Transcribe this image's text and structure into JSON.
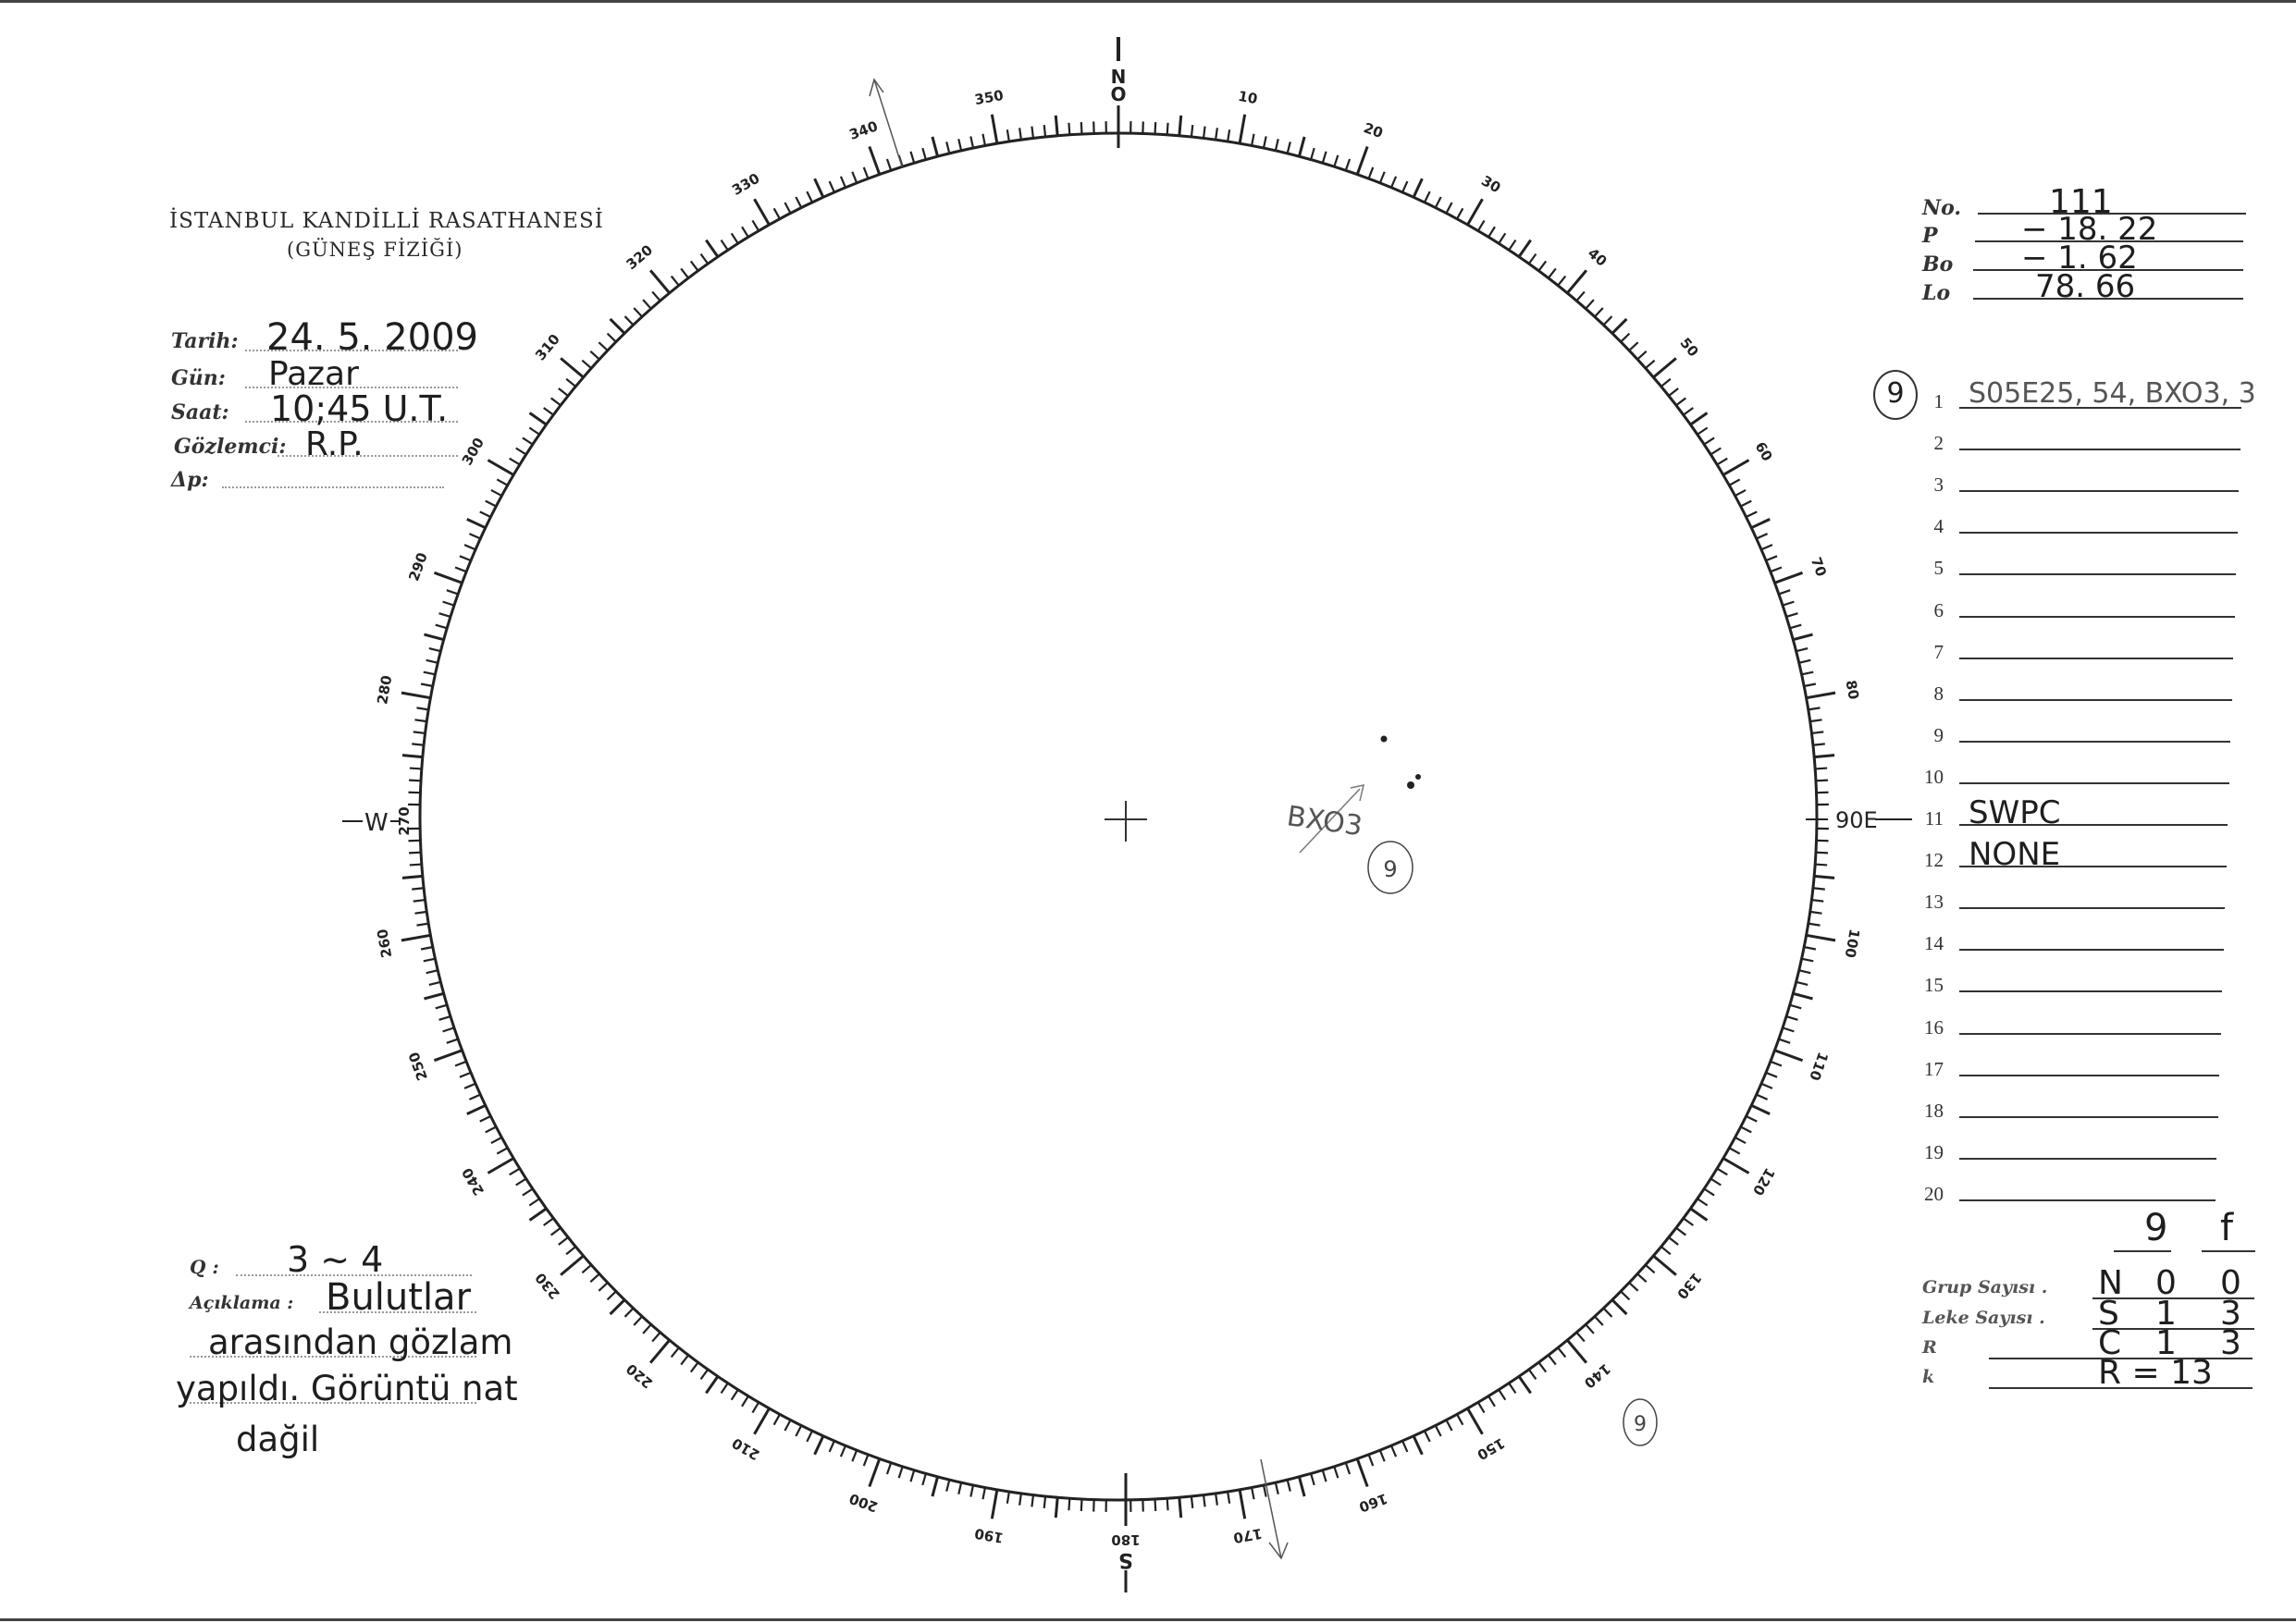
{
  "header": {
    "institution": "İSTANBUL KANDİLLİ RASATHANESİ",
    "department": "(GÜNEŞ FİZİĞİ)"
  },
  "observation": {
    "date_label": "Tarih:",
    "date_value": "24. 5. 2009",
    "day_label": "Gün:",
    "day_value": "Pazar",
    "time_label": "Saat:",
    "time_value": "10;45 U.T.",
    "observer_label": "Gözlemci:",
    "observer_value": "R.P.",
    "delta_p_label": "Δp:",
    "delta_p_value": ""
  },
  "parameters": [
    {
      "label": "No.",
      "value": "111"
    },
    {
      "label": "P",
      "value": "− 18. 22"
    },
    {
      "label": "Bo",
      "value": "− 1. 62"
    },
    {
      "label": "Lo",
      "value": "78. 66"
    }
  ],
  "group_lines": [
    {
      "n": "1",
      "value": "S05E25, 54, BXO3, 3",
      "mark": "9"
    },
    {
      "n": "2",
      "value": ""
    },
    {
      "n": "3",
      "value": ""
    },
    {
      "n": "4",
      "value": ""
    },
    {
      "n": "5",
      "value": ""
    },
    {
      "n": "6",
      "value": ""
    },
    {
      "n": "7",
      "value": ""
    },
    {
      "n": "8",
      "value": ""
    },
    {
      "n": "9",
      "value": ""
    },
    {
      "n": "10",
      "value": ""
    },
    {
      "n": "11",
      "value": "SWPC"
    },
    {
      "n": "12",
      "value": "NONE"
    },
    {
      "n": "13",
      "value": ""
    },
    {
      "n": "14",
      "value": ""
    },
    {
      "n": "15",
      "value": ""
    },
    {
      "n": "16",
      "value": ""
    },
    {
      "n": "17",
      "value": ""
    },
    {
      "n": "18",
      "value": ""
    },
    {
      "n": "19",
      "value": ""
    },
    {
      "n": "20",
      "value": ""
    }
  ],
  "summary": {
    "col_headers": [
      "9",
      "f"
    ],
    "rows": [
      {
        "label": "Grup Sayısı .",
        "hemi": "N",
        "g": "0",
        "f": "0"
      },
      {
        "label": "Leke Sayısı .",
        "hemi": "S",
        "g": "1",
        "f": "3"
      },
      {
        "label": "R",
        "hemi": "C",
        "g": "1",
        "f": "3"
      },
      {
        "label": "k",
        "hemi": "R = 13",
        "g": "",
        "f": ""
      }
    ]
  },
  "notes": {
    "q_label": "Q :",
    "q_value": "3 ~ 4",
    "remark_label": "Açıklama :",
    "remark_lines": [
      "Bulutlar",
      "arasından gözlam",
      "yapıldı. Görüntü nat",
      "dağil"
    ]
  },
  "disk": {
    "cardinals": {
      "north": "N",
      "north_zero": "O",
      "east": "90E",
      "south": "180",
      "south_letter": "S",
      "west": "W",
      "west_deg": "270"
    },
    "scale_labels": [
      "",
      "10",
      "20",
      "30",
      "40",
      "50",
      "60",
      "70",
      "80",
      "",
      "100",
      "110",
      "120",
      "130",
      "140",
      "150",
      "160",
      "170",
      "",
      "190",
      "200",
      "210",
      "220",
      "230",
      "240",
      "250",
      "260",
      "",
      "280",
      "290",
      "300",
      "310",
      "320",
      "330",
      "340",
      "350"
    ],
    "group_annotation": "BXO3",
    "group_number": "9",
    "limb_mark": "9",
    "spots_heliographic_note": "S05E25",
    "ink_color": "#222222",
    "pencil_color": "#555555"
  }
}
